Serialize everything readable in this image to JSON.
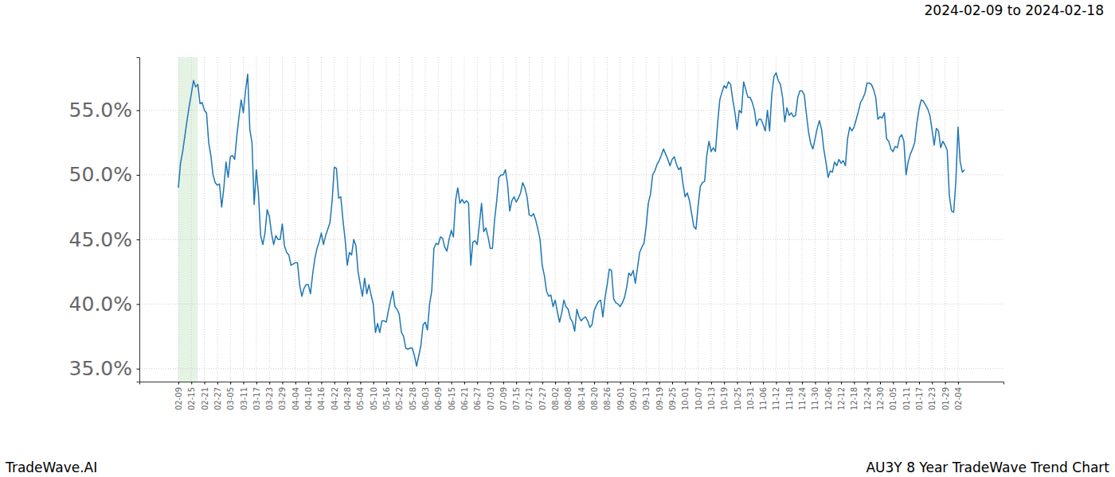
{
  "chart_data": {
    "type": "line",
    "title": "2024-02-09 to 2024-02-18",
    "annotations": [
      "TradeWave.AI",
      "AU3Y 8 Year TradeWave Trend Chart"
    ],
    "color": "#1f77b4",
    "grid": true,
    "highlight": [
      0,
      9
    ],
    "ylim": [
      34,
      59.1
    ],
    "yticks": [
      {
        "value": 35,
        "label": "35.0%"
      },
      {
        "value": 40,
        "label": "40.0%"
      },
      {
        "value": 45,
        "label": "45.0%"
      },
      {
        "value": 50,
        "label": "50.0%"
      },
      {
        "value": 55,
        "label": "55.0%"
      }
    ],
    "categories": [
      "02-09",
      null,
      null,
      null,
      null,
      null,
      "02-15",
      null,
      null,
      null,
      null,
      null,
      "02-21",
      null,
      null,
      null,
      null,
      null,
      "02-27",
      null,
      null,
      null,
      null,
      null,
      "03-05",
      null,
      null,
      null,
      null,
      null,
      "03-11",
      null,
      null,
      null,
      null,
      null,
      "03-17",
      null,
      null,
      null,
      null,
      null,
      "03-23",
      null,
      null,
      null,
      null,
      null,
      "03-29",
      null,
      null,
      null,
      null,
      null,
      "04-04",
      null,
      null,
      null,
      null,
      null,
      "04-10",
      null,
      null,
      null,
      null,
      null,
      "04-16",
      null,
      null,
      null,
      null,
      null,
      "04-22",
      null,
      null,
      null,
      null,
      null,
      "04-28",
      null,
      null,
      null,
      null,
      null,
      "05-04",
      null,
      null,
      null,
      null,
      null,
      "05-10",
      null,
      null,
      null,
      null,
      null,
      "05-16",
      null,
      null,
      null,
      null,
      null,
      "05-22",
      null,
      null,
      null,
      null,
      null,
      "05-28",
      null,
      null,
      null,
      null,
      null,
      "06-03",
      null,
      null,
      null,
      null,
      null,
      "06-09",
      null,
      null,
      null,
      null,
      null,
      "06-15",
      null,
      null,
      null,
      null,
      null,
      "06-21",
      null,
      null,
      null,
      null,
      null,
      "06-27",
      null,
      null,
      null,
      null,
      null,
      "07-03",
      null,
      null,
      null,
      null,
      null,
      "07-09",
      null,
      null,
      null,
      null,
      null,
      "07-15",
      null,
      null,
      null,
      null,
      null,
      "07-21",
      null,
      null,
      null,
      null,
      null,
      "07-27",
      null,
      null,
      null,
      null,
      null,
      "08-02",
      null,
      null,
      null,
      null,
      null,
      "08-08",
      null,
      null,
      null,
      null,
      null,
      "08-14",
      null,
      null,
      null,
      null,
      null,
      "08-20",
      null,
      null,
      null,
      null,
      null,
      "08-26",
      null,
      null,
      null,
      null,
      null,
      "09-01",
      null,
      null,
      null,
      null,
      null,
      "09-07",
      null,
      null,
      null,
      null,
      null,
      "09-13",
      null,
      null,
      null,
      null,
      null,
      "09-19",
      null,
      null,
      null,
      null,
      null,
      "09-25",
      null,
      null,
      null,
      null,
      null,
      "10-01",
      null,
      null,
      null,
      null,
      null,
      "10-07",
      null,
      null,
      null,
      null,
      null,
      "10-13",
      null,
      null,
      null,
      null,
      null,
      "10-19",
      null,
      null,
      null,
      null,
      null,
      "10-25",
      null,
      null,
      null,
      null,
      null,
      "10-31",
      null,
      null,
      null,
      null,
      null,
      "11-06",
      null,
      null,
      null,
      null,
      null,
      "11-12",
      null,
      null,
      null,
      null,
      null,
      "11-18",
      null,
      null,
      null,
      null,
      null,
      "11-24",
      null,
      null,
      null,
      null,
      null,
      "11-30",
      null,
      null,
      null,
      null,
      null,
      "12-06",
      null,
      null,
      null,
      null,
      null,
      "12-12",
      null,
      null,
      null,
      null,
      null,
      "12-18",
      null,
      null,
      null,
      null,
      null,
      "12-24",
      null,
      null,
      null,
      null,
      null,
      "12-30",
      null,
      null,
      null,
      null,
      null,
      "01-05",
      null,
      null,
      null,
      null,
      null,
      "01-11",
      null,
      null,
      null,
      null,
      null,
      "01-17",
      null,
      null,
      null,
      null,
      null,
      "01-23",
      null,
      null,
      null,
      null,
      null,
      "01-29",
      null,
      null,
      null,
      null,
      null,
      "02-04",
      null,
      null,
      null
    ],
    "values": [
      49.0,
      50.9,
      51.8,
      53.0,
      54.2,
      55.3,
      56.3,
      57.3,
      56.8,
      57.0,
      55.5,
      55.6,
      55.0,
      54.8,
      52.5,
      51.5,
      50.0,
      49.4,
      49.2,
      49.3,
      47.5,
      49.0,
      51.0,
      49.8,
      51.4,
      51.5,
      51.2,
      53.0,
      54.5,
      55.8,
      54.8,
      56.5,
      57.8,
      53.5,
      52.5,
      47.7,
      50.4,
      48.5,
      45.3,
      44.6,
      45.5,
      47.3,
      46.8,
      45.5,
      44.6,
      45.3,
      45.0,
      45.0,
      46.2,
      44.5,
      44.0,
      43.8,
      43.0,
      43.1,
      43.2,
      43.2,
      41.5,
      40.6,
      41.2,
      41.5,
      41.5,
      40.8,
      42.3,
      43.5,
      44.3,
      44.8,
      45.5,
      44.6,
      45.3,
      45.8,
      46.3,
      48.0,
      50.6,
      50.5,
      48.2,
      48.3,
      46.5,
      45.0,
      43.0,
      44.0,
      43.8,
      45.0,
      44.5,
      42.5,
      41.5,
      40.6,
      42.0,
      40.8,
      41.5,
      40.7,
      40.0,
      37.8,
      38.5,
      37.8,
      38.7,
      38.7,
      38.6,
      39.5,
      40.3,
      41.0,
      39.8,
      39.6,
      39.2,
      37.8,
      37.5,
      36.6,
      36.5,
      36.6,
      36.6,
      36.0,
      35.2,
      36.0,
      36.8,
      38.4,
      38.6,
      38.0,
      40.0,
      41.0,
      44.3,
      44.7,
      44.6,
      45.2,
      45.1,
      44.4,
      44.1,
      45.0,
      45.7,
      45.2,
      48.0,
      49.0,
      47.8,
      48.1,
      47.8,
      48.0,
      47.8,
      43.0,
      44.8,
      44.9,
      44.6,
      46.2,
      47.8,
      45.6,
      45.9,
      45.2,
      44.3,
      44.3,
      46.5,
      48.0,
      49.8,
      50.0,
      50.0,
      50.4,
      49.3,
      47.2,
      48.0,
      48.3,
      47.9,
      48.2,
      48.6,
      49.4,
      49.0,
      48.3,
      46.9,
      46.8,
      47.0,
      46.5,
      45.8,
      45.0,
      43.0,
      42.2,
      41.0,
      40.6,
      40.7,
      39.8,
      40.3,
      39.4,
      38.6,
      39.3,
      40.3,
      39.8,
      39.6,
      38.9,
      38.6,
      37.9,
      39.6,
      39.0,
      38.7,
      38.9,
      39.0,
      38.7,
      38.2,
      38.4,
      39.5,
      39.9,
      40.2,
      40.3,
      39.0,
      40.5,
      41.5,
      42.7,
      42.6,
      40.4,
      40.1,
      40.0,
      39.8,
      40.1,
      40.5,
      41.3,
      42.4,
      42.2,
      42.6,
      41.6,
      42.8,
      44.0,
      44.4,
      44.7,
      46.0,
      47.8,
      48.5,
      50.0,
      50.3,
      50.8,
      51.1,
      51.5,
      52.0,
      51.6,
      51.2,
      50.7,
      51.2,
      51.4,
      50.8,
      50.4,
      50.6,
      49.3,
      48.3,
      48.6,
      48.0,
      47.0,
      46.0,
      45.8,
      47.6,
      49.1,
      49.4,
      49.5,
      51.5,
      52.6,
      51.8,
      52.1,
      51.8,
      54.0,
      55.8,
      56.4,
      56.9,
      56.7,
      57.2,
      57.0,
      55.8,
      54.8,
      53.5,
      55.0,
      54.8,
      57.2,
      56.6,
      56.0,
      56.0,
      55.6,
      55.0,
      53.8,
      54.3,
      54.3,
      53.9,
      53.4,
      55.0,
      53.4,
      56.2,
      57.6,
      57.9,
      57.3,
      57.0,
      56.0,
      54.1,
      55.2,
      54.6,
      54.8,
      54.5,
      54.6,
      56.0,
      56.5,
      56.5,
      56.2,
      54.7,
      53.3,
      52.4,
      52.0,
      52.8,
      53.6,
      54.2,
      53.5,
      52.0,
      51.0,
      49.8,
      50.3,
      50.2,
      51.0,
      50.7,
      51.2,
      50.9,
      51.1,
      50.7,
      52.8,
      53.7,
      53.4,
      53.7,
      54.3,
      54.9,
      55.6,
      55.9,
      56.3,
      57.1,
      57.1,
      57.0,
      56.6,
      56.0,
      54.3,
      54.5,
      54.4,
      54.8,
      52.8,
      52.6,
      52.0,
      51.8,
      52.2,
      52.1,
      52.9,
      53.1,
      52.6,
      50.0,
      51.0,
      51.6,
      52.0,
      52.5,
      54.0,
      55.1,
      55.8,
      55.7,
      55.4,
      55.1,
      54.6,
      53.5,
      52.3,
      53.6,
      53.4,
      52.1,
      52.6,
      52.3,
      51.9,
      48.4,
      47.2,
      47.1,
      49.5,
      53.7,
      51.0,
      50.2,
      50.4
    ]
  }
}
